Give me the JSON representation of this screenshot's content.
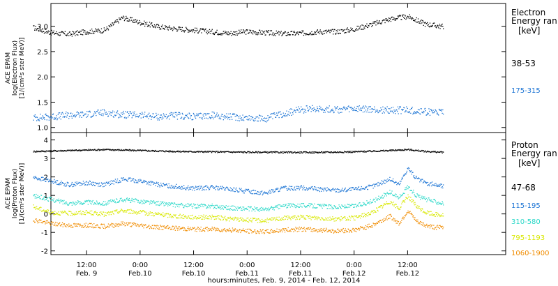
{
  "chart_data": [
    {
      "type": "scatter",
      "panel": "electron",
      "ylabel_lines": [
        "ACE EPAM",
        "log(Electron Flux)",
        "[1/(cm²s ster MeV)]"
      ],
      "ylim": [
        0.9,
        3.45
      ],
      "yticks": [
        1.0,
        1.5,
        2.0,
        2.5,
        3.0
      ],
      "ytick_labels": [
        "1.0",
        "1.5",
        "2.0",
        "2.5",
        "3.0"
      ],
      "legend_title": [
        "Electron",
        "Energy ran",
        "[keV]"
      ],
      "series": [
        {
          "name": "38-53",
          "color": "#000000",
          "x": [
            0,
            4,
            8,
            12,
            16,
            20,
            24,
            28,
            32,
            36,
            40,
            44,
            48,
            52,
            56,
            60,
            64,
            68,
            72,
            76,
            80,
            84,
            88,
            92
          ],
          "y": [
            2.98,
            2.88,
            2.85,
            2.9,
            2.93,
            3.18,
            3.08,
            3.0,
            2.96,
            2.93,
            2.9,
            2.87,
            2.9,
            2.88,
            2.86,
            2.87,
            2.9,
            2.9,
            2.95,
            3.05,
            3.15,
            3.2,
            3.05,
            3.0
          ]
        },
        {
          "name": "175-315",
          "color": "#1c74d4",
          "x": [
            0,
            4,
            8,
            12,
            16,
            20,
            24,
            28,
            32,
            36,
            40,
            44,
            48,
            52,
            56,
            60,
            64,
            68,
            72,
            76,
            80,
            84,
            88,
            92
          ],
          "y": [
            1.2,
            1.22,
            1.25,
            1.27,
            1.3,
            1.26,
            1.25,
            1.22,
            1.24,
            1.22,
            1.25,
            1.22,
            1.2,
            1.18,
            1.28,
            1.36,
            1.38,
            1.36,
            1.37,
            1.36,
            1.35,
            1.35,
            1.32,
            1.3
          ]
        }
      ]
    },
    {
      "type": "scatter",
      "panel": "proton",
      "ylabel_lines": [
        "ACE EPAM",
        "log(Proton Flux)",
        "[1/(cm²s ster MeV)]"
      ],
      "ylim": [
        -2.2,
        4.4
      ],
      "yticks": [
        -2,
        -1,
        0,
        1,
        2,
        3,
        4
      ],
      "ytick_labels": [
        "-2",
        "-1",
        "0",
        "1",
        "2",
        "3",
        "4"
      ],
      "legend_title": [
        "Proton",
        "Energy ran",
        "[keV]"
      ],
      "series": [
        {
          "name": "47-68",
          "color": "#000000",
          "x": [
            0,
            8,
            16,
            24,
            32,
            40,
            48,
            56,
            64,
            72,
            80,
            84,
            88,
            92
          ],
          "y": [
            3.4,
            3.45,
            3.5,
            3.45,
            3.4,
            3.38,
            3.36,
            3.35,
            3.35,
            3.38,
            3.45,
            3.5,
            3.4,
            3.35
          ]
        },
        {
          "name": "115-195",
          "color": "#1c74d4",
          "x": [
            0,
            4,
            8,
            12,
            16,
            20,
            24,
            28,
            32,
            36,
            40,
            44,
            48,
            52,
            56,
            60,
            64,
            68,
            72,
            76,
            80,
            82,
            84,
            86,
            88,
            90,
            92
          ],
          "y": [
            2.0,
            1.8,
            1.6,
            1.7,
            1.6,
            1.9,
            1.8,
            1.6,
            1.5,
            1.4,
            1.45,
            1.35,
            1.25,
            1.15,
            1.4,
            1.45,
            1.35,
            1.3,
            1.35,
            1.5,
            1.9,
            1.6,
            2.5,
            1.9,
            1.7,
            1.6,
            1.5
          ]
        },
        {
          "name": "310-580",
          "color": "#2ad8c8",
          "x": [
            0,
            4,
            8,
            12,
            16,
            20,
            24,
            28,
            32,
            36,
            40,
            44,
            48,
            52,
            56,
            60,
            64,
            68,
            72,
            76,
            80,
            82,
            84,
            86,
            88,
            90,
            92
          ],
          "y": [
            1.0,
            0.8,
            0.6,
            0.65,
            0.6,
            0.8,
            0.7,
            0.6,
            0.5,
            0.45,
            0.45,
            0.35,
            0.3,
            0.25,
            0.45,
            0.5,
            0.45,
            0.4,
            0.45,
            0.7,
            1.2,
            0.9,
            1.5,
            1.0,
            0.8,
            0.7,
            0.6
          ]
        },
        {
          "name": "795-1193",
          "color": "#d8e800",
          "x": [
            0,
            4,
            8,
            12,
            16,
            20,
            24,
            28,
            32,
            36,
            40,
            44,
            48,
            52,
            56,
            60,
            64,
            68,
            72,
            76,
            80,
            82,
            84,
            86,
            88,
            90,
            92
          ],
          "y": [
            0.4,
            0.1,
            0.05,
            0.1,
            0.0,
            0.2,
            0.1,
            0.0,
            -0.1,
            -0.15,
            -0.15,
            -0.25,
            -0.3,
            -0.35,
            -0.2,
            -0.15,
            -0.2,
            -0.25,
            -0.2,
            0.1,
            0.7,
            0.3,
            1.0,
            0.4,
            0.1,
            0.0,
            -0.05
          ]
        },
        {
          "name": "1060-1900",
          "color": "#f08c00",
          "x": [
            0,
            4,
            8,
            12,
            16,
            20,
            24,
            28,
            32,
            36,
            40,
            44,
            48,
            52,
            56,
            60,
            64,
            68,
            72,
            76,
            80,
            82,
            84,
            86,
            88,
            90,
            92
          ],
          "y": [
            -0.3,
            -0.5,
            -0.6,
            -0.6,
            -0.65,
            -0.5,
            -0.6,
            -0.7,
            -0.75,
            -0.8,
            -0.8,
            -0.85,
            -0.9,
            -0.95,
            -0.85,
            -0.8,
            -0.85,
            -0.9,
            -0.85,
            -0.6,
            -0.1,
            -0.5,
            0.2,
            -0.4,
            -0.6,
            -0.7,
            -0.7
          ]
        }
      ]
    }
  ],
  "x_axis": {
    "unit": "hours since Feb. 9, 2014 00:00",
    "xlim": [
      4,
      106
    ],
    "ticks": [
      {
        "x": 12,
        "time": "12:00",
        "date": "Feb. 9"
      },
      {
        "x": 24,
        "time": "0:00",
        "date": "Feb.10"
      },
      {
        "x": 36,
        "time": "12:00",
        "date": "Feb.10"
      },
      {
        "x": 48,
        "time": "0:00",
        "date": "Feb.11"
      },
      {
        "x": 60,
        "time": "12:00",
        "date": "Feb.11"
      },
      {
        "x": 72,
        "time": "0:00",
        "date": "Feb.12"
      },
      {
        "x": 84,
        "time": "12:00",
        "date": "Feb.12"
      }
    ],
    "label": "hours:minutes, Feb.  9, 2014 - Feb. 12, 2014"
  }
}
